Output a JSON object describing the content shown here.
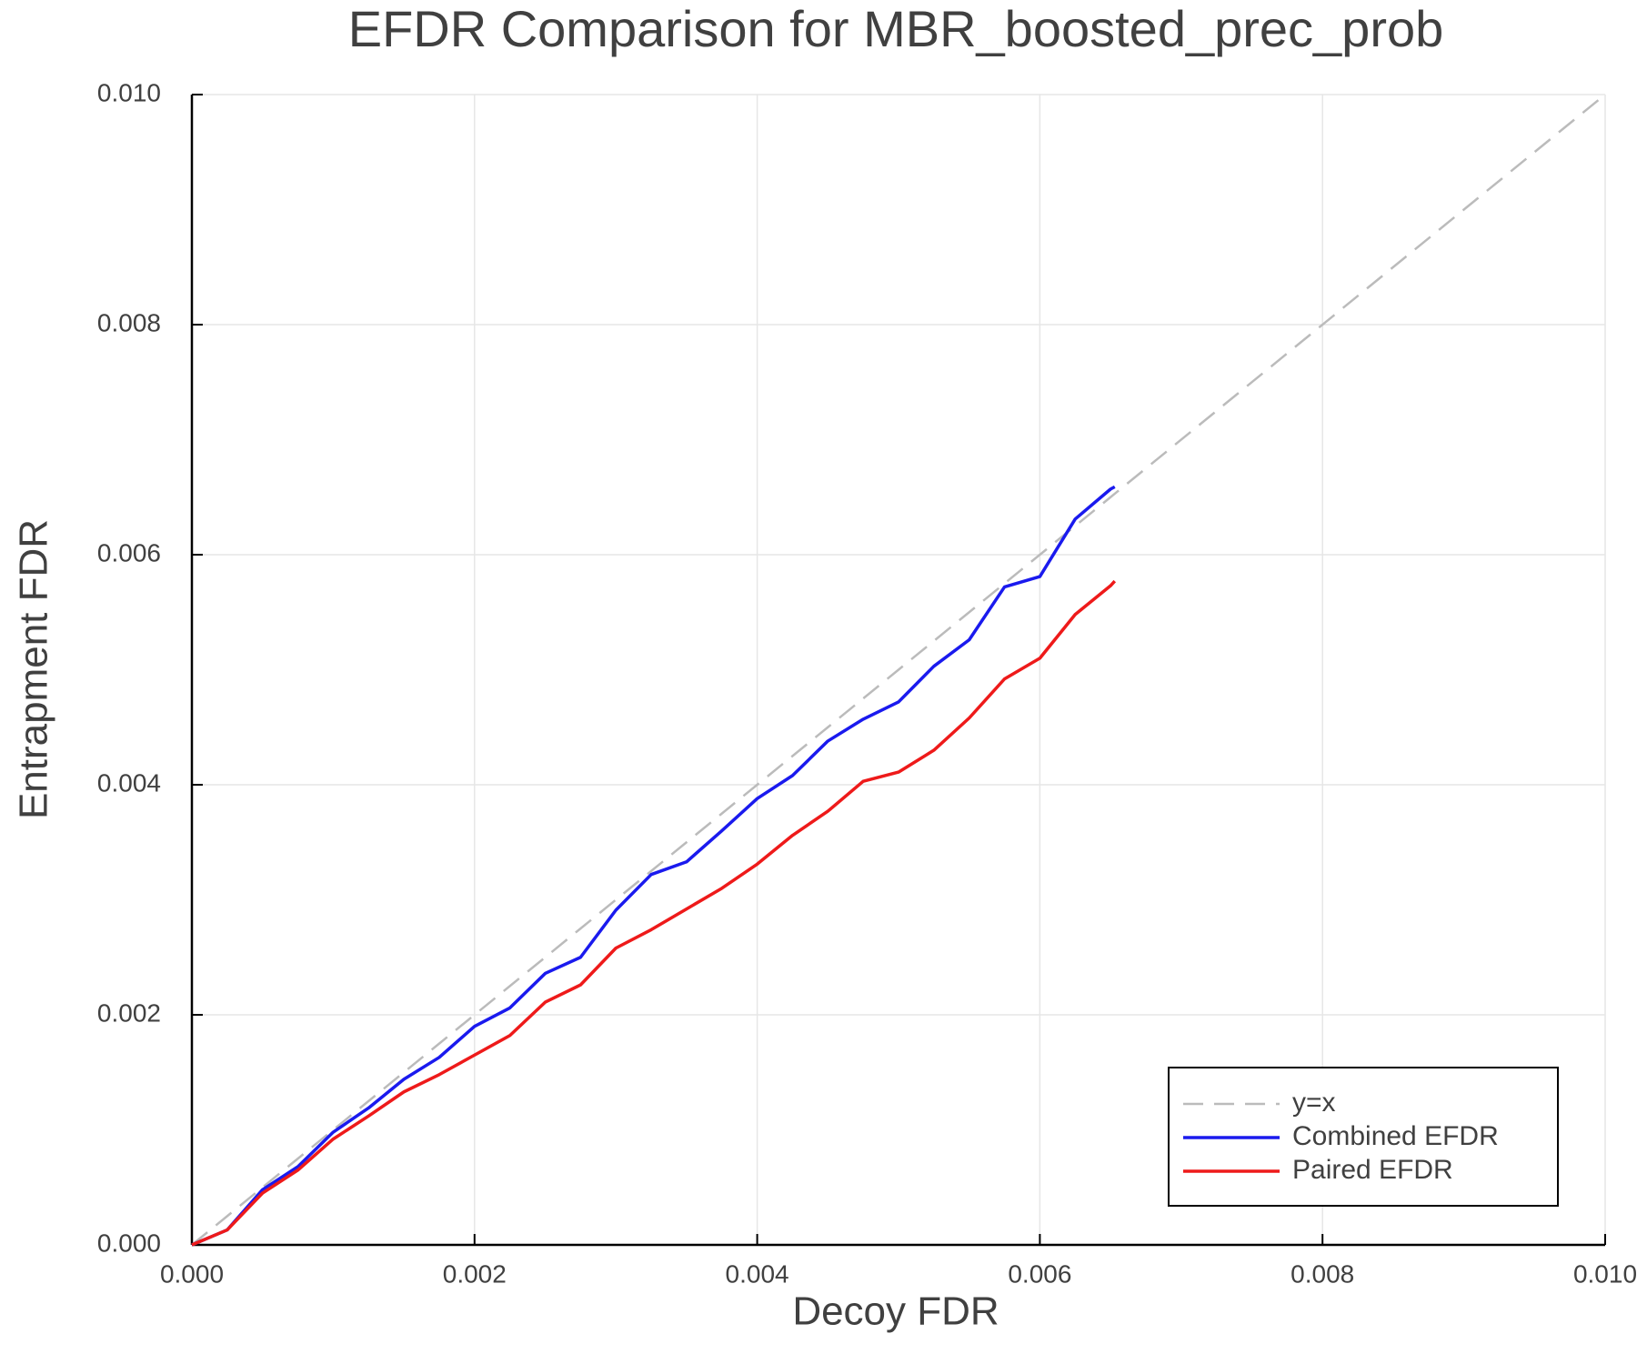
{
  "chart_data": {
    "type": "line",
    "title": "EFDR Comparison for MBR_boosted_prec_prob",
    "x_label": "Decoy FDR",
    "y_label": "Entrapment FDR",
    "x": [
      0,
      0.00025,
      0.0005,
      0.00075,
      0.001,
      0.00125,
      0.0015,
      0.00175,
      0.002,
      0.00225,
      0.0025,
      0.00275,
      0.003,
      0.00325,
      0.0035,
      0.00375,
      0.004,
      0.00425,
      0.0045,
      0.00475,
      0.005,
      0.00525,
      0.0055,
      0.00575,
      0.006,
      0.00625,
      0.0065,
      0.00653,
      0.01
    ],
    "series": [
      {
        "name": "y=x",
        "color": "#bbbbbb",
        "style": "dashed",
        "values": [
          0,
          0.00025,
          0.0005,
          0.00075,
          0.001,
          0.00125,
          0.0015,
          0.00175,
          0.002,
          0.00225,
          0.0025,
          0.00275,
          0.003,
          0.00325,
          0.0035,
          0.00375,
          0.004,
          0.00425,
          0.0045,
          0.00475,
          0.005,
          0.00525,
          0.0055,
          0.00575,
          0.006,
          0.00625,
          0.0065,
          0.00653,
          0.01
        ]
      },
      {
        "name": "Combined EFDR",
        "color": "#1a1aee",
        "style": "solid",
        "values": [
          0,
          0.00013,
          0.00048,
          0.00068,
          0.00098,
          0.00119,
          0.00144,
          0.00163,
          0.0019,
          0.00206,
          0.00236,
          0.0025,
          0.00291,
          0.00322,
          0.00333,
          0.0036,
          0.00388,
          0.00408,
          0.00438,
          0.00457,
          0.00472,
          0.00503,
          0.00526,
          0.00572,
          0.00581,
          0.00631,
          0.00657,
          0.00659,
          null
        ]
      },
      {
        "name": "Paired EFDR",
        "color": "#ee1a1a",
        "style": "solid",
        "values": [
          0,
          0.00013,
          0.00045,
          0.00065,
          0.00092,
          0.00112,
          0.00133,
          0.00148,
          0.00165,
          0.00182,
          0.00211,
          0.00226,
          0.00258,
          0.00274,
          0.00292,
          0.0031,
          0.00331,
          0.00356,
          0.00377,
          0.00403,
          0.00411,
          0.0043,
          0.00458,
          0.00492,
          0.0051,
          0.00548,
          0.00573,
          0.00577,
          null
        ]
      }
    ],
    "xlim": [
      0,
      0.01
    ],
    "ylim": [
      0,
      0.01
    ],
    "xticks": [
      {
        "value": 0,
        "label": "0.000"
      },
      {
        "value": 0.002,
        "label": "0.002"
      },
      {
        "value": 0.004,
        "label": "0.004"
      },
      {
        "value": 0.006,
        "label": "0.006"
      },
      {
        "value": 0.008,
        "label": "0.008"
      },
      {
        "value": 0.01,
        "label": "0.010"
      }
    ],
    "yticks": [
      {
        "value": 0,
        "label": "0.000"
      },
      {
        "value": 0.002,
        "label": "0.002"
      },
      {
        "value": 0.004,
        "label": "0.004"
      },
      {
        "value": 0.006,
        "label": "0.006"
      },
      {
        "value": 0.008,
        "label": "0.008"
      },
      {
        "value": 0.01,
        "label": "0.010"
      }
    ],
    "grid": true,
    "legend": "lower right"
  }
}
